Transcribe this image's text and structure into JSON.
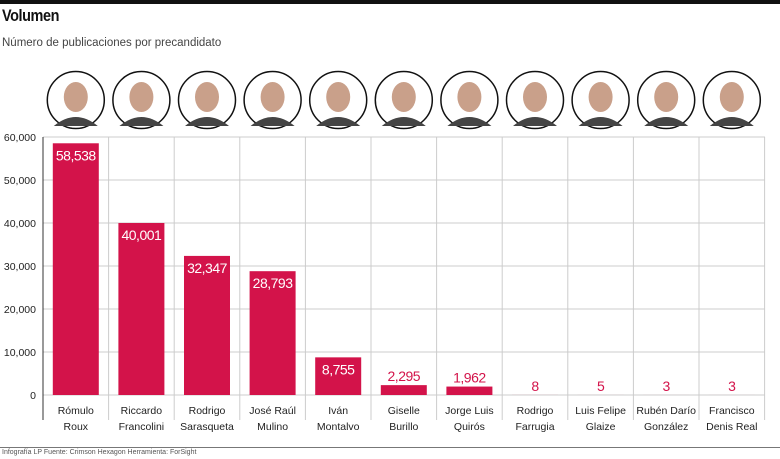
{
  "chart_data": {
    "type": "bar",
    "title": "Volumen",
    "subtitle": "Número de publicaciones por precandidato",
    "xlabel": "",
    "ylabel": "",
    "ylim": [
      0,
      60000
    ],
    "yticks": [
      "0",
      "10,000",
      "20,000",
      "30,000",
      "40,000",
      "50,000",
      "60,000"
    ],
    "ytick_values": [
      0,
      10000,
      20000,
      30000,
      40000,
      50000,
      60000
    ],
    "grid": true,
    "categories": [
      [
        "Rómulo",
        "Roux"
      ],
      [
        "Riccardo",
        "Francolini"
      ],
      [
        "Rodrigo",
        "Sarasqueta"
      ],
      [
        "José Raúl",
        "Mulino"
      ],
      [
        "Iván",
        "Montalvo"
      ],
      [
        "Giselle",
        "Burillo"
      ],
      [
        "Jorge Luis",
        "Quirós"
      ],
      [
        "Rodrigo",
        "Farrugia"
      ],
      [
        "Luis Felipe",
        "Glaize"
      ],
      [
        "Rubén Darío",
        "González"
      ],
      [
        "Francisco",
        "Denis Real"
      ]
    ],
    "values": [
      58538,
      40001,
      32347,
      28793,
      8755,
      2295,
      1962,
      8,
      5,
      3,
      3
    ],
    "value_labels": [
      "58,538",
      "40,001",
      "32,347",
      "28,793",
      "8,755",
      "2,295",
      "1,962",
      "8",
      "5",
      "3",
      "3"
    ],
    "bar_color": "#d3134a"
  },
  "footer": "Infografía LP  Fuente: Crimson Hexagon  Herramienta: ForSight"
}
